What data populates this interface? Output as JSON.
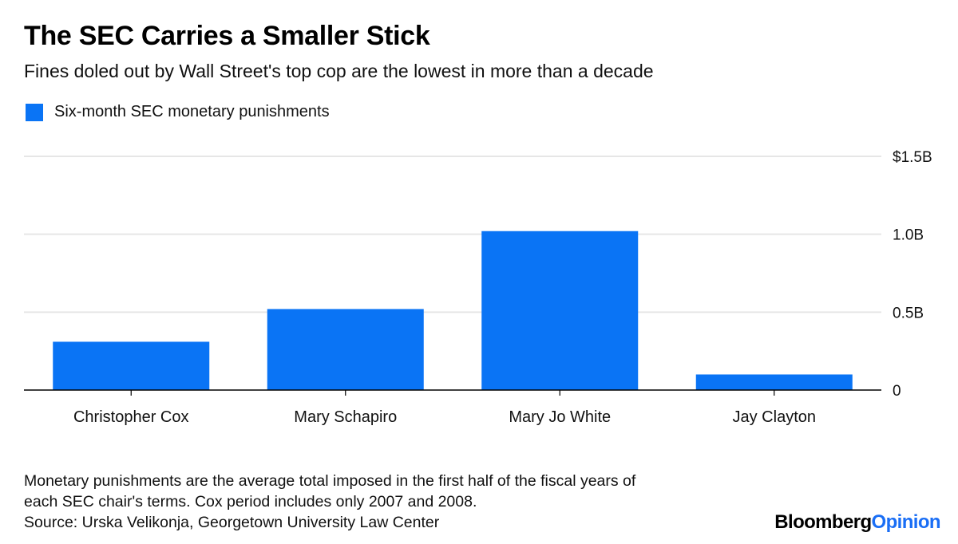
{
  "title": "The SEC Carries a Smaller Stick",
  "subtitle": "Fines doled out by Wall Street's top cop are the lowest in more than a decade",
  "legend": {
    "label": "Six-month SEC monetary punishments",
    "color": "#0a74f5"
  },
  "notes": [
    "Monetary punishments are the average total imposed in the first half of the fiscal years of",
    "each SEC chair's terms. Cox period includes only 2007 and 2008.",
    "Source: Urska Velikonja, Georgetown University Law Center"
  ],
  "brand": {
    "part1": "Bloomberg",
    "part2": "Opinion"
  },
  "chart_data": {
    "type": "bar",
    "categories": [
      "Christopher Cox",
      "Mary Schapiro",
      "Mary Jo White",
      "Jay Clayton"
    ],
    "series": [
      {
        "name": "Six-month SEC monetary punishments",
        "values": [
          0.31,
          0.52,
          1.02,
          0.1
        ]
      }
    ],
    "y_unit": "billions of dollars",
    "ylim": [
      0,
      1.5
    ],
    "yticks": [
      0,
      0.5,
      1.0,
      1.5
    ],
    "ytick_labels": [
      "0",
      "0.5B",
      "1.0B",
      "$1.5B"
    ],
    "grid": true,
    "y_axis_position": "right",
    "legend_position": "top-left",
    "bar_color": "#0a74f5"
  }
}
